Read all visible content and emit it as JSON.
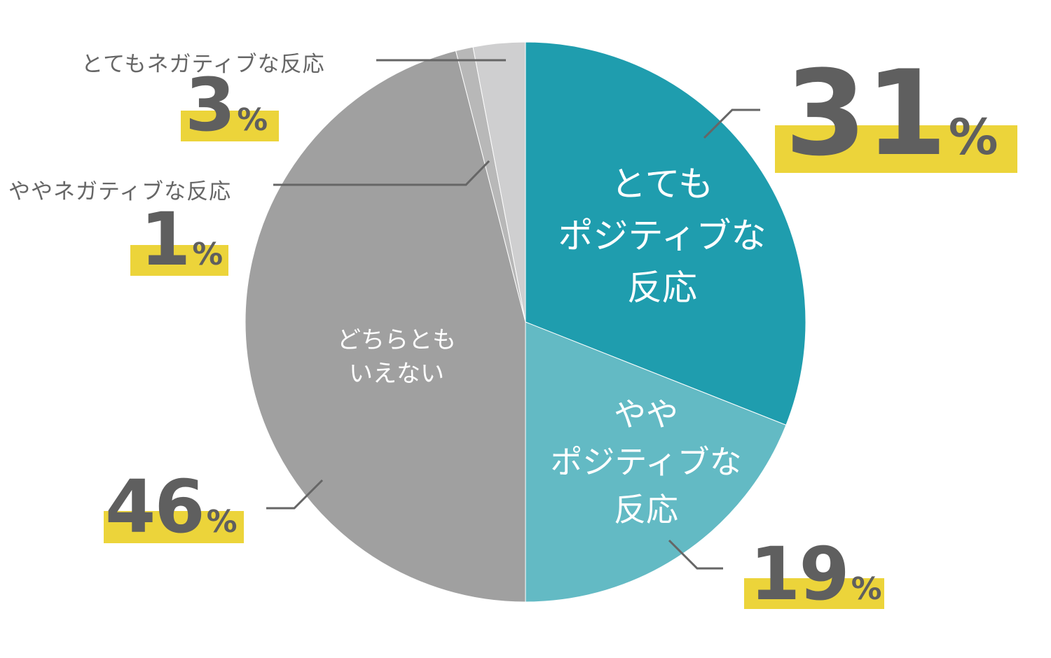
{
  "chart_data": {
    "type": "pie",
    "title": "",
    "unit": "%",
    "slices": [
      {
        "label_lines": [
          "とても",
          "ポジティブな",
          "反応"
        ],
        "value": 31,
        "display": "31",
        "color": "#1f9dae"
      },
      {
        "label_lines": [
          "やや",
          "ポジティブな",
          "反応"
        ],
        "value": 19,
        "display": "19",
        "color": "#63bac4"
      },
      {
        "label_lines": [
          "どちらとも",
          "いえない"
        ],
        "value": 46,
        "display": "46",
        "color": "#a0a0a0"
      },
      {
        "label_lines": [
          "ややネガティブな反応"
        ],
        "value": 1,
        "display": "1",
        "color": "#b8b8b8"
      },
      {
        "label_lines": [
          "とてもネガティブな反応"
        ],
        "value": 3,
        "display": "3",
        "color": "#cfcfd0"
      }
    ]
  }
}
